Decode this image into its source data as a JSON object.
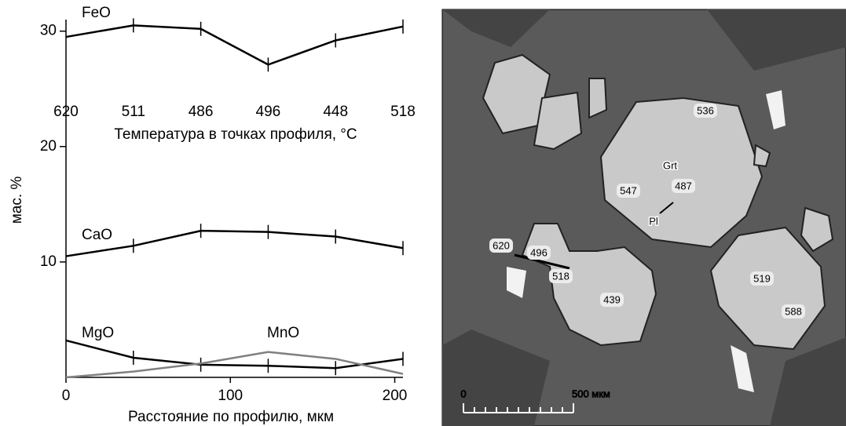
{
  "chart_data": {
    "type": "line",
    "x_label": "Расстояние по профилю, мкм",
    "y_label": "мас. %",
    "x": [
      0,
      41,
      82,
      123,
      164,
      205
    ],
    "xlim": [
      0,
      205
    ],
    "xticks": [
      0,
      100,
      200
    ],
    "ylim": [
      0,
      31
    ],
    "yticks": [
      10,
      20,
      30
    ],
    "top_axis_label": "Температура в точках профиля, °C",
    "top_labels": [
      "620",
      "511",
      "486",
      "496",
      "448",
      "518"
    ],
    "series": [
      {
        "name": "FeO",
        "color": "#000000",
        "marker": true,
        "values": [
          29.5,
          30.5,
          30.2,
          27.1,
          29.2,
          30.4
        ]
      },
      {
        "name": "CaO",
        "color": "#000000",
        "marker": true,
        "values": [
          10.5,
          11.4,
          12.7,
          12.6,
          12.2,
          11.2
        ]
      },
      {
        "name": "MgO",
        "color": "#000000",
        "marker": true,
        "values": [
          3.2,
          1.7,
          1.1,
          1.0,
          0.8,
          1.6
        ]
      },
      {
        "name": "MnO",
        "color": "#808080",
        "marker": false,
        "values": [
          0,
          0.5,
          1.2,
          2.2,
          1.6,
          0.3
        ]
      }
    ]
  },
  "image": {
    "labels": [
      "536",
      "Grt",
      "547",
      "487",
      "Pl",
      "620",
      "496",
      "518",
      "439",
      "519",
      "588"
    ],
    "scale_bar": [
      "0",
      "500 мкм"
    ]
  }
}
